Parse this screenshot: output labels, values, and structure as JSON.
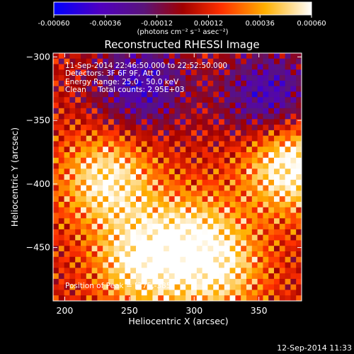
{
  "chart_data": {
    "type": "heatmap",
    "title": "Reconstructed RHESSI Image",
    "xlabel": "Heliocentric X (arcsec)",
    "ylabel": "Heliocentric Y (arcsec)",
    "xlim": [
      191,
      383
    ],
    "ylim": [
      -492,
      -297
    ],
    "xticks": [
      200,
      250,
      300,
      350
    ],
    "yticks": [
      -300,
      -350,
      -400,
      -450
    ],
    "colorbar": {
      "range": [
        -0.0006,
        0.0006
      ],
      "ticks": [
        "-0.00060",
        "-0.00036",
        "-0.00012",
        "0.00012",
        "0.00036",
        "0.00060"
      ],
      "units": "(photons cm⁻² s⁻¹ asec⁻²)",
      "colormap": "blue-purple-red-yellow-white"
    },
    "info_lines": [
      "11-Sep-2014 22:46:50.000 to 22:52:50.000",
      "Detectors: 3F 6F 9F, Att 0",
      "Energy Range: 25.0 - 50.0 keV",
      "Clean     Total counts: 2.95E+03"
    ],
    "peak_label": "Position of Peak = [375,-385]",
    "peak_position": [
      375,
      -385
    ],
    "timestamp": "12-Sep-2014 11:33",
    "sources": [
      {
        "x": 258,
        "y": -322,
        "level": -0.00044
      },
      {
        "x": 358,
        "y": -332,
        "level": -0.00046
      },
      {
        "x": 233,
        "y": -397,
        "level": 0.0005
      },
      {
        "x": 375,
        "y": -385,
        "level": 0.0006
      },
      {
        "x": 300,
        "y": -440,
        "level": 0.00035
      },
      {
        "x": 260,
        "y": -462,
        "level": 0.00052
      },
      {
        "x": 320,
        "y": -470,
        "level": 0.00038
      }
    ]
  },
  "colors": {
    "background": "#000000",
    "text": "#ffffff"
  }
}
